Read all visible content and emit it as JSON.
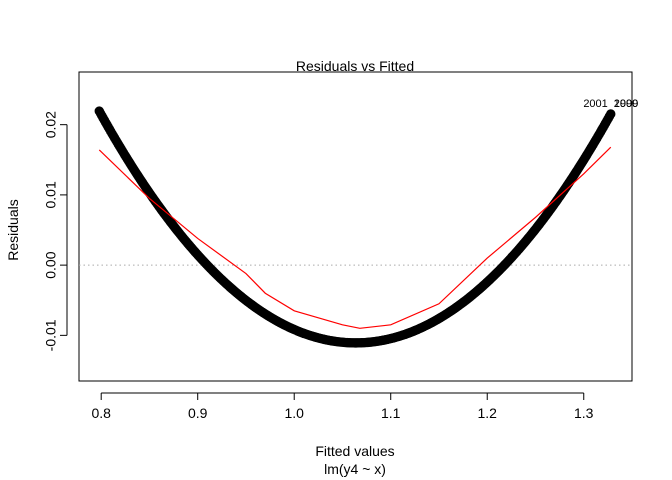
{
  "chart_data": {
    "type": "scatter",
    "title": "Residuals vs Fitted",
    "xlabel": "Fitted values",
    "subxlabel": "lm(y4 ~ x)",
    "ylabel": "Residuals",
    "xlim": [
      0.777,
      1.35
    ],
    "ylim": [
      -0.0165,
      0.0275
    ],
    "xticks": [
      0.8,
      0.9,
      1.0,
      1.1,
      1.2,
      1.3
    ],
    "xtick_labels": [
      "0.8",
      "0.9",
      "1.0",
      "1.1",
      "1.2",
      "1.3"
    ],
    "yticks": [
      -0.01,
      0.0,
      0.01,
      0.02
    ],
    "ytick_labels": [
      "-0.01",
      "0.00",
      "0.01",
      "0.02"
    ],
    "zero_line": 0,
    "grid": false,
    "colors": {
      "points": "#000000",
      "smoother": "#ff0000",
      "zero_line": "#aaaaaa"
    },
    "residual_curve": {
      "description_points": [
        {
          "x": 0.798,
          "y": 0.0208
        },
        {
          "x": 0.85,
          "y": 0.0108
        },
        {
          "x": 0.9,
          "y": 0.0022
        },
        {
          "x": 0.95,
          "y": -0.0046
        },
        {
          "x": 1.0,
          "y": -0.009
        },
        {
          "x": 1.05,
          "y": -0.0108
        },
        {
          "x": 1.068,
          "y": -0.0111
        },
        {
          "x": 1.1,
          "y": -0.0105
        },
        {
          "x": 1.15,
          "y": -0.0078
        },
        {
          "x": 1.2,
          "y": -0.003
        },
        {
          "x": 1.25,
          "y": 0.004
        },
        {
          "x": 1.3,
          "y": 0.0146
        },
        {
          "x": 1.328,
          "y": 0.023
        }
      ]
    },
    "smoother": {
      "name": "smoother",
      "points": [
        {
          "x": 0.798,
          "y": 0.0164
        },
        {
          "x": 0.85,
          "y": 0.0095
        },
        {
          "x": 0.9,
          "y": 0.0038
        },
        {
          "x": 0.95,
          "y": -0.0012
        },
        {
          "x": 0.97,
          "y": -0.004
        },
        {
          "x": 1.0,
          "y": -0.0065
        },
        {
          "x": 1.05,
          "y": -0.0085
        },
        {
          "x": 1.068,
          "y": -0.009
        },
        {
          "x": 1.1,
          "y": -0.0085
        },
        {
          "x": 1.15,
          "y": -0.0055
        },
        {
          "x": 1.2,
          "y": 0.001
        },
        {
          "x": 1.25,
          "y": 0.0068
        },
        {
          "x": 1.3,
          "y": 0.013
        },
        {
          "x": 1.328,
          "y": 0.0168
        }
      ]
    },
    "annotations": [
      {
        "text": "2001",
        "x": 1.327,
        "y": 0.0231,
        "anchor": "end"
      },
      {
        "text": "2000",
        "x": 1.329,
        "y": 0.0231,
        "anchor": "start"
      },
      {
        "text": "1999",
        "x": 1.329,
        "y": 0.0231,
        "anchor": "start"
      }
    ]
  }
}
